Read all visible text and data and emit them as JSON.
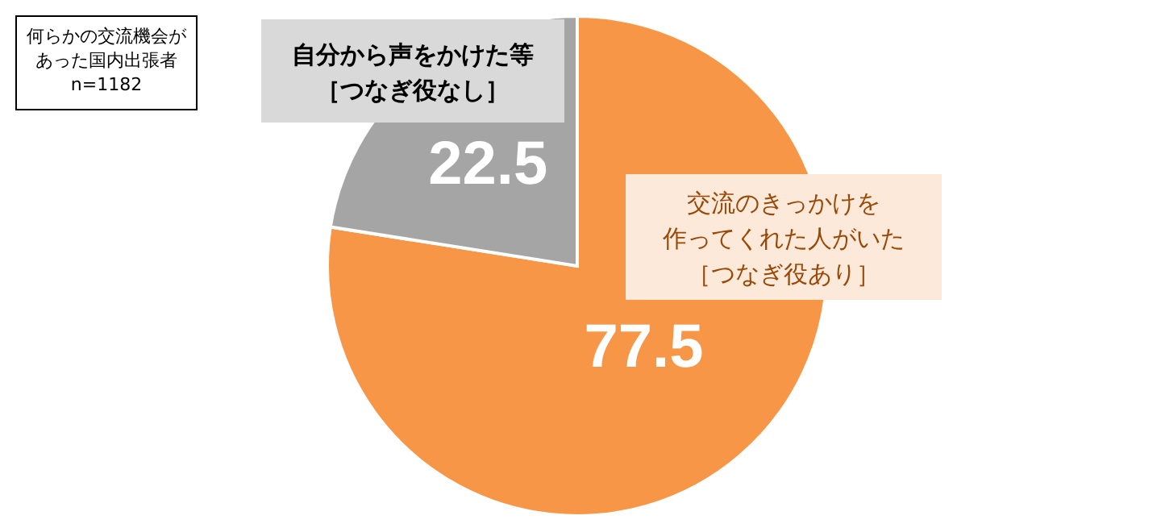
{
  "chart_data": {
    "type": "pie",
    "categories": [
      "交流のきっかけを作ってくれた人がいた［つなぎ役あり］",
      "自分から声をかけた等［つなぎ役なし］"
    ],
    "values": [
      77.5,
      22.5
    ],
    "colors": [
      "#f79646",
      "#a5a5a5"
    ],
    "data_labels": true,
    "annotations": [
      "何らかの交流機会があった国内出張者n=1182"
    ]
  }
}
